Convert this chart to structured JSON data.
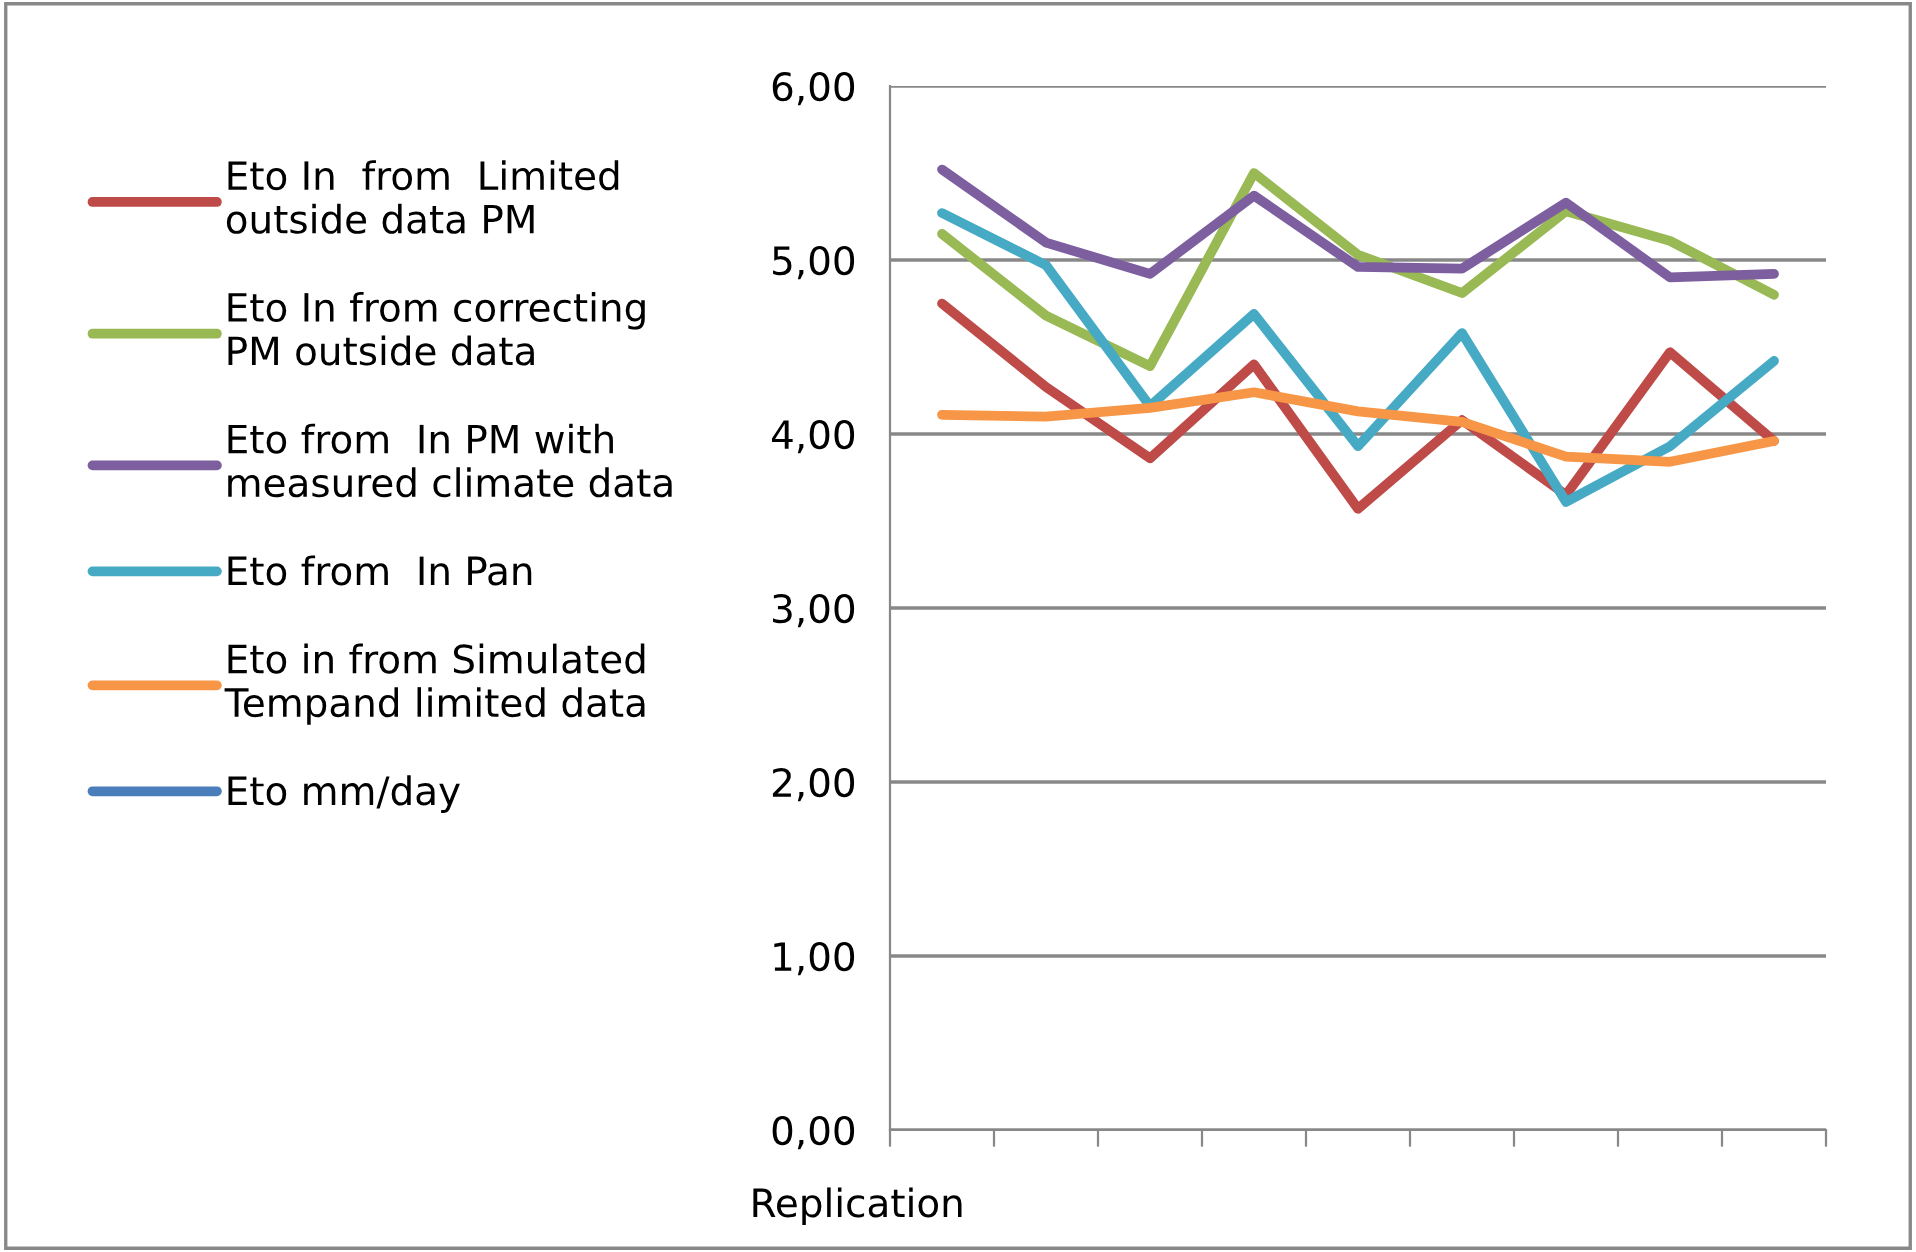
{
  "chart_data": {
    "type": "line",
    "xlabel": "Replication",
    "categories": [
      null,
      null,
      null,
      null,
      null,
      null,
      null,
      null,
      null
    ],
    "series": [
      {
        "name": "Eto In  from  Limited\noutside data PM",
        "color": "#be4b48",
        "values": [
          4.75,
          4.27,
          3.86,
          4.4,
          3.57,
          4.08,
          3.65,
          4.47,
          3.96
        ]
      },
      {
        "name": "Eto In from correcting\nPM outside data",
        "color": "#98b954",
        "values": [
          5.15,
          4.68,
          4.39,
          5.5,
          5.03,
          4.81,
          5.28,
          5.11,
          4.8
        ]
      },
      {
        "name": "Eto from  In PM with\nmeasured climate data",
        "color": "#7d5fa0",
        "values": [
          5.52,
          5.1,
          4.92,
          5.37,
          4.96,
          4.95,
          5.33,
          4.9,
          4.92
        ]
      },
      {
        "name": "Eto from  In Pan",
        "color": "#46aac5",
        "values": [
          5.27,
          4.97,
          4.16,
          4.69,
          3.93,
          4.58,
          3.61,
          3.93,
          4.42
        ]
      },
      {
        "name": "Eto in from Simulated\nTempand limited data",
        "color": "#f79646",
        "values": [
          4.11,
          4.1,
          4.15,
          4.24,
          4.13,
          4.07,
          3.87,
          3.84,
          3.96
        ]
      },
      {
        "name": "Eto mm/day",
        "color": "#4a7ebb",
        "values": [
          null,
          null,
          null,
          null,
          null,
          null,
          null,
          null,
          null
        ]
      }
    ],
    "ylim": [
      0,
      6
    ],
    "yticks": [
      {
        "value": 0,
        "label": "0,00"
      },
      {
        "value": 1,
        "label": "1,00"
      },
      {
        "value": 2,
        "label": "2,00"
      },
      {
        "value": 3,
        "label": "3,00"
      },
      {
        "value": 4,
        "label": "4,00"
      },
      {
        "value": 5,
        "label": "5,00"
      },
      {
        "value": 6,
        "label": "6,00"
      }
    ],
    "grid": "y",
    "legend": "left",
    "marker": "none",
    "line_style": "solid"
  }
}
